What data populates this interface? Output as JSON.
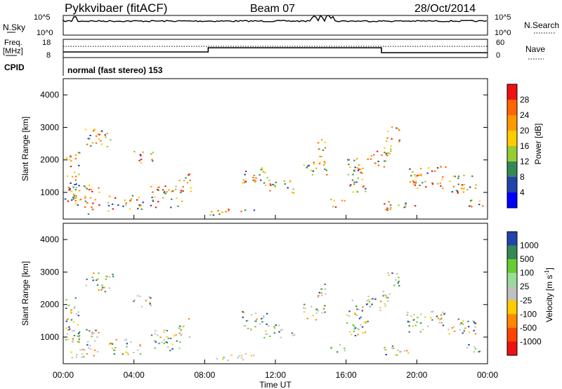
{
  "header": {
    "station": "Pykkvibaer (fitACF)",
    "beam": "Beam 07",
    "date": "28/Oct/2014"
  },
  "top_panels": {
    "nsky_label": "N.Sky",
    "nsky_ticks": [
      "10^5",
      "10^0"
    ],
    "nsearch_label": "N.Search",
    "nsearch_ticks": [
      "10^5",
      "10^0"
    ],
    "freq_label_line1": "Freq.",
    "freq_label_line2": "[MHz]",
    "freq_ticks": [
      "18",
      "8"
    ],
    "nave_label": "Nave",
    "nave_ticks": [
      "60",
      "0"
    ],
    "cpid_label": "CPID",
    "cpid_text": "normal (fast stereo) 153"
  },
  "colors": {
    "red": "#ee1111",
    "orange": "#ff8800",
    "yellow": "#ffcc00",
    "green_light": "#66cc33",
    "green_dark": "#338855",
    "blue": "#2244aa",
    "blue_bright": "#0000ff",
    "grey": "#c0c0c0"
  },
  "chart_data": [
    {
      "type": "heatmap",
      "title": "Power",
      "ylabel": "Slant Range [km]",
      "ylim": [
        180,
        4500
      ],
      "yticks": [
        "1000",
        "2000",
        "3000",
        "4000"
      ],
      "colorbar_label": "Power [dB]",
      "colorbar_ticks": [
        "28",
        "24",
        "20",
        "16",
        "12",
        "8",
        "4"
      ],
      "colorbar_colors": [
        "#ee1111",
        "#ff6600",
        "#ff9900",
        "#ffcc00",
        "#99cc33",
        "#338855",
        "#2244aa",
        "#0000ff"
      ]
    },
    {
      "type": "heatmap",
      "title": "Velocity",
      "ylabel": "Slant Range [km]",
      "ylim": [
        180,
        4500
      ],
      "yticks": [
        "1000",
        "2000",
        "3000",
        "4000"
      ],
      "xlabel": "Time UT",
      "xticks": [
        "00:00",
        "04:00",
        "08:00",
        "12:00",
        "16:00",
        "20:00",
        "00:00"
      ],
      "colorbar_label": "Velocity [m s^-1]",
      "colorbar_ticks": [
        "1000",
        "500",
        "100",
        "25",
        "-25",
        "-100",
        "-500",
        "-1000"
      ],
      "colorbar_colors": [
        "#2244aa",
        "#338855",
        "#66cc33",
        "#99dd99",
        "#c0c0c0",
        "#ffcc00",
        "#ff8800",
        "#ff4400",
        "#ee1111"
      ]
    }
  ]
}
